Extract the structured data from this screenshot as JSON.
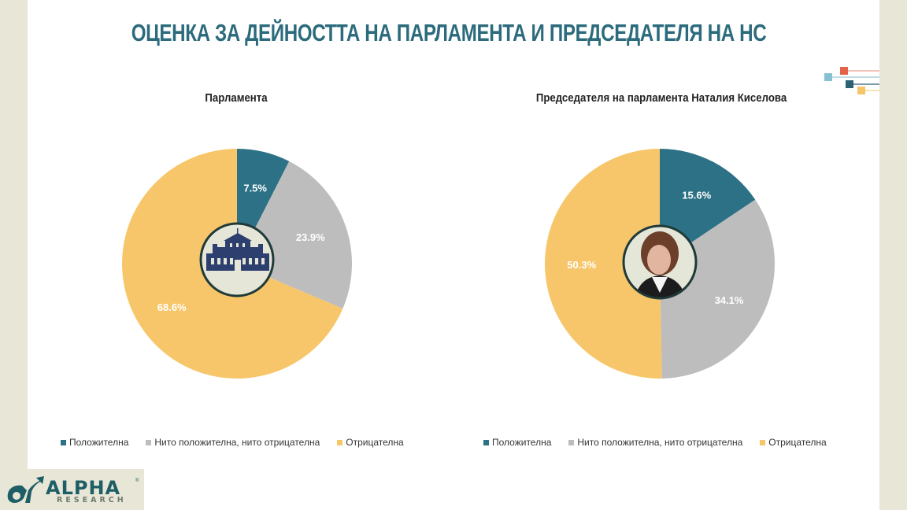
{
  "header": {
    "title": "ОЦЕНКА ЗА ДЕЙНОСТТА НА ПАРЛАМЕНТА И ПРЕДСЕДАТЕЛЯ НА НС"
  },
  "charts": [
    {
      "title": "Парламента",
      "center_image": "parliament-building-icon"
    },
    {
      "title": "Председателя на парламента Наталия Киселова",
      "center_image": "person-portrait"
    }
  ],
  "legend": {
    "items": [
      {
        "label": "Положителна",
        "color": "#2c7185"
      },
      {
        "label": "Нито положителна, нито отрицателна",
        "color": "#bdbdbd"
      },
      {
        "label": "Отрицателна",
        "color": "#f7c66a"
      }
    ]
  },
  "colors": {
    "positive": "#2c7185",
    "neutral": "#bdbdbd",
    "negative": "#f7c66a",
    "title": "#2b6b7c",
    "frame": "#e8e6d6"
  },
  "logo": {
    "name": "ALPHA",
    "sub": "RESEARCH",
    "reg": "®"
  },
  "chart_data": [
    {
      "type": "pie",
      "title": "Парламента",
      "categories": [
        "Положителна",
        "Нито положителна, нито отрицателна",
        "Отрицателна"
      ],
      "values": [
        7.5,
        23.9,
        68.6
      ],
      "labels": [
        "7.5%",
        "23.9%",
        "68.6%"
      ],
      "colors": [
        "#2c7185",
        "#bdbdbd",
        "#f7c66a"
      ],
      "legend_position": "bottom",
      "start_angle": "12 o'clock, clockwise"
    },
    {
      "type": "pie",
      "title": "Председателя на парламента Наталия Киселова",
      "categories": [
        "Положителна",
        "Нито положителна, нито отрицателна",
        "Отрицателна"
      ],
      "values": [
        15.6,
        34.1,
        50.3
      ],
      "labels": [
        "15.6%",
        "34.1%",
        "50.3%"
      ],
      "colors": [
        "#2c7185",
        "#bdbdbd",
        "#f7c66a"
      ],
      "legend_position": "bottom",
      "start_angle": "12 o'clock, clockwise"
    }
  ]
}
